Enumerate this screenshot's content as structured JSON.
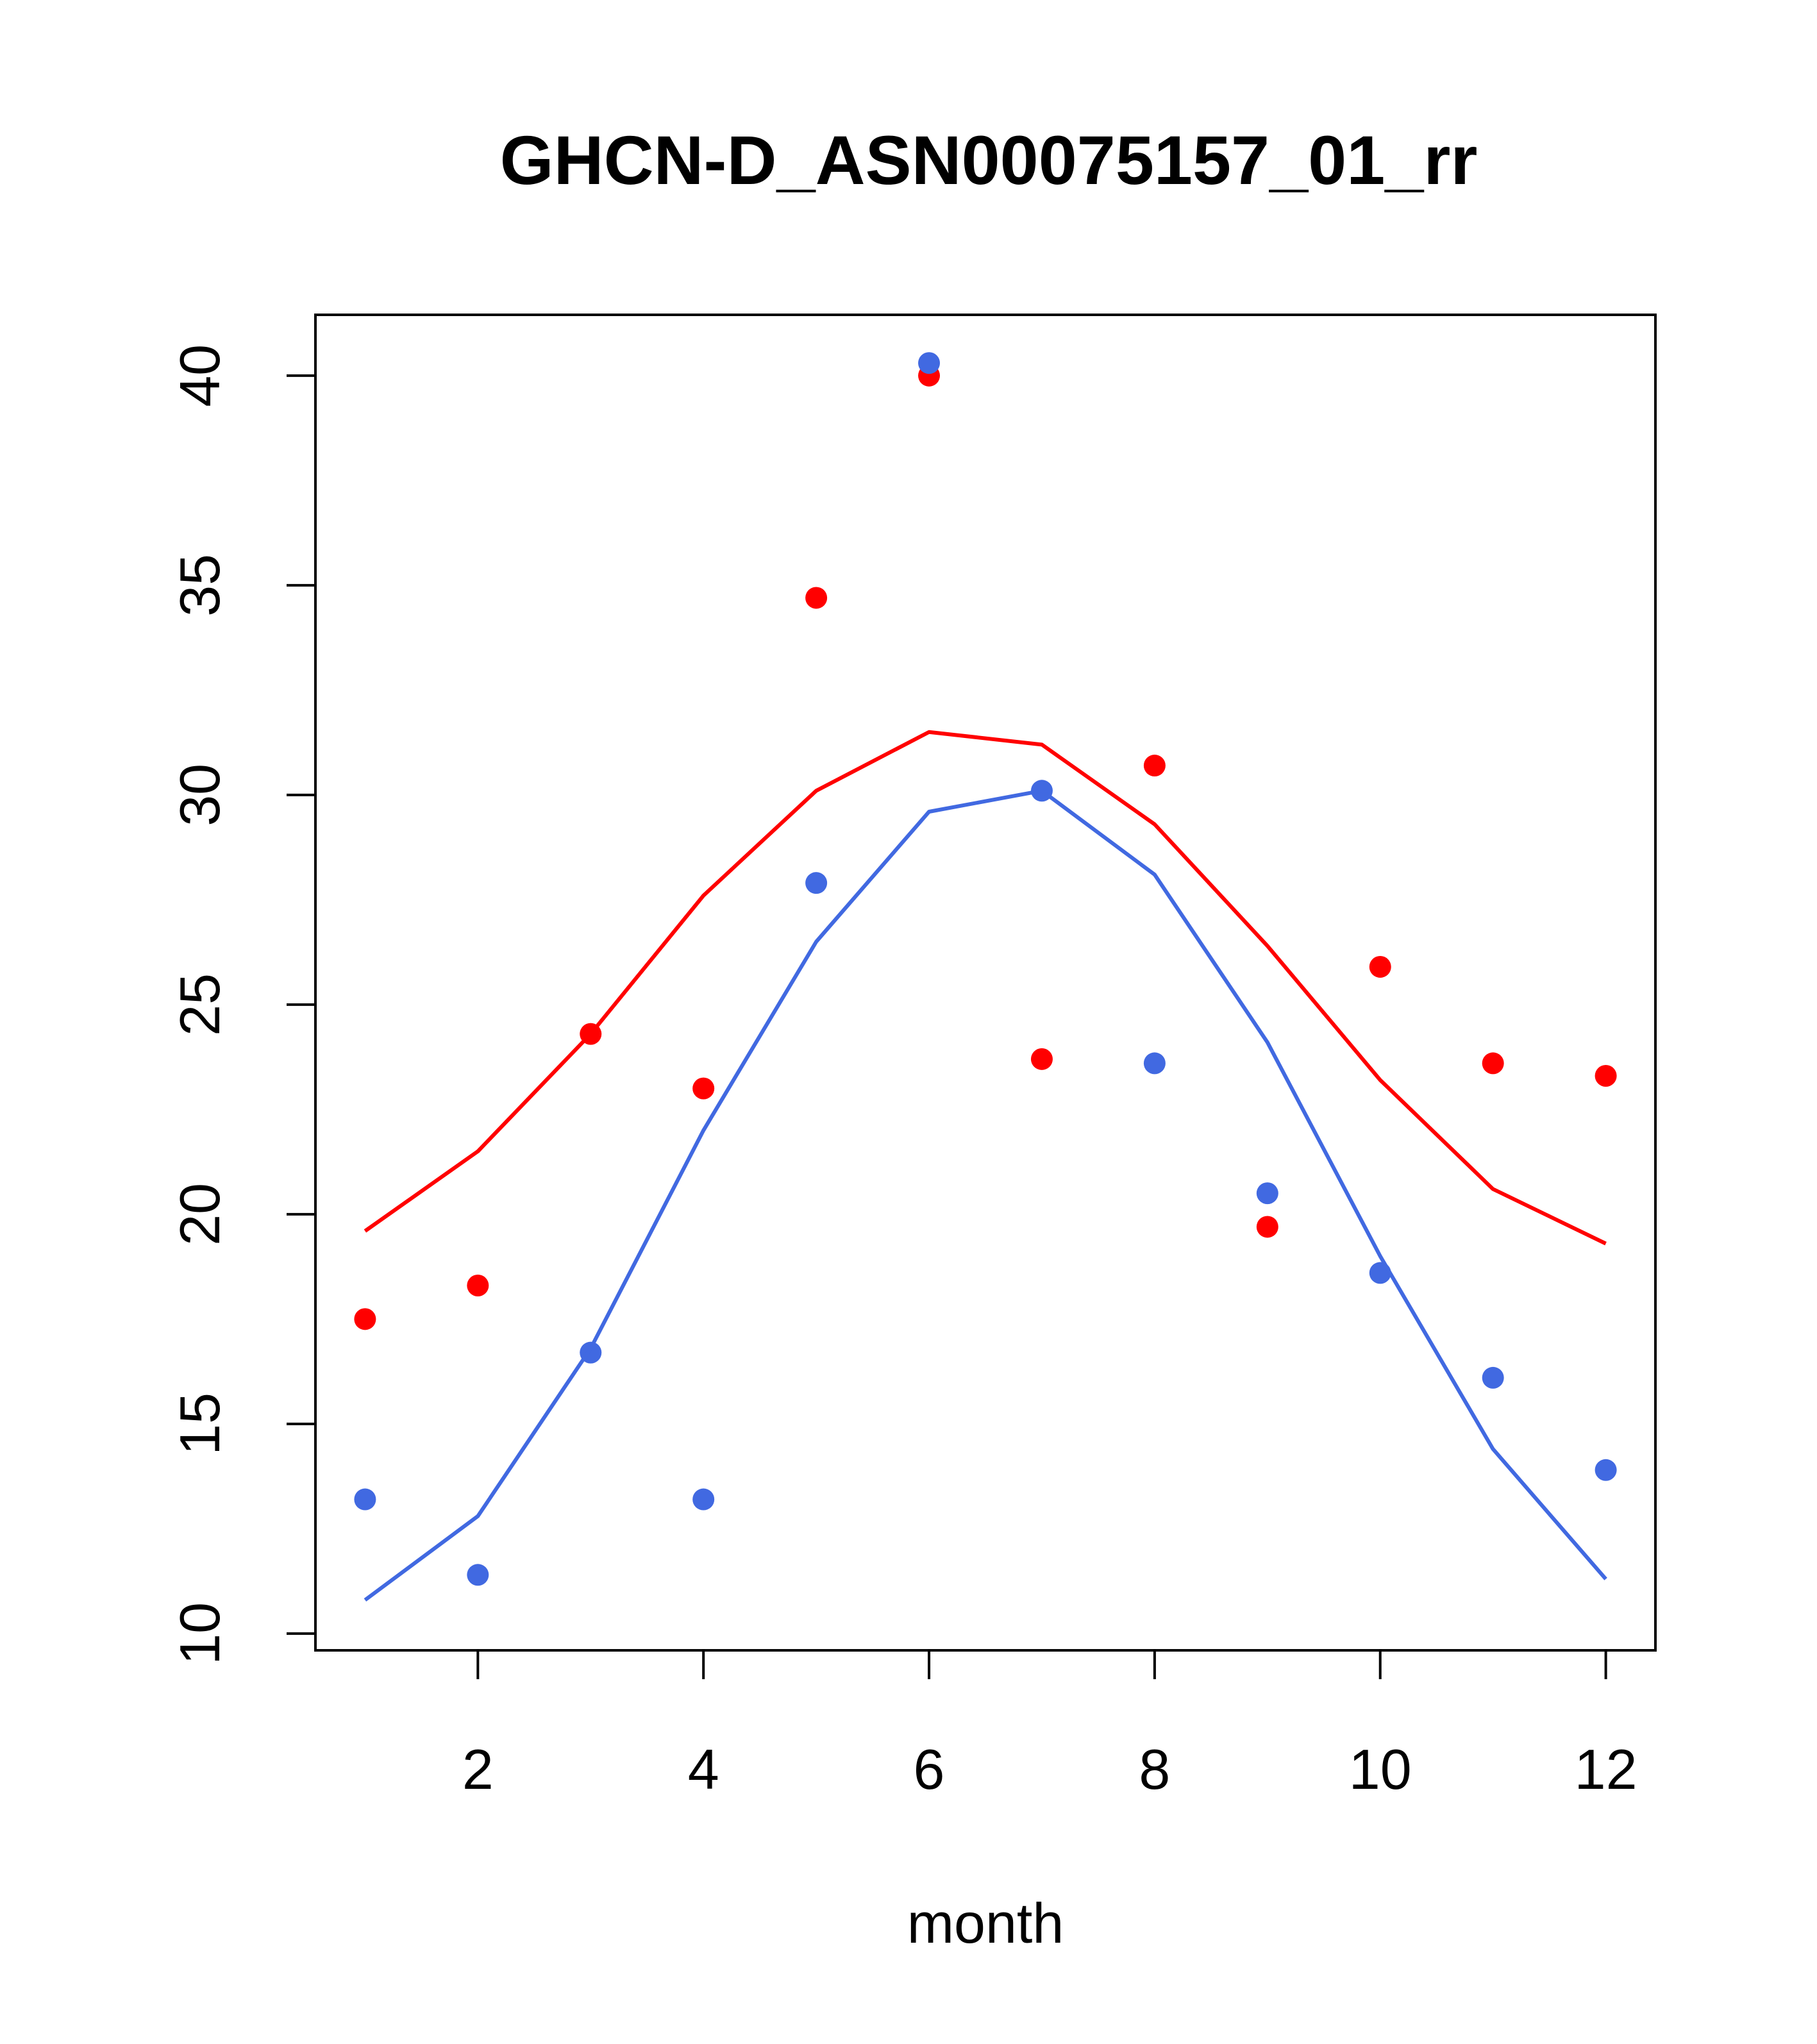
{
  "chart_data": {
    "type": "scatter",
    "title": "GHCN-D_ASN00075157_01_rr",
    "xlabel": "month",
    "ylabel": "",
    "xlim": [
      0.56,
      12.44
    ],
    "ylim": [
      9.6,
      41.45
    ],
    "x_ticks": [
      2,
      4,
      6,
      8,
      10,
      12
    ],
    "x_tick_labels": [
      "2",
      "4",
      "6",
      "8",
      "10",
      "12"
    ],
    "y_ticks": [
      10,
      15,
      20,
      25,
      30,
      35,
      40
    ],
    "y_tick_labels": [
      "10",
      "15",
      "20",
      "25",
      "30",
      "35",
      "40"
    ],
    "grid": false,
    "series": [
      {
        "name": "red points",
        "kind": "points",
        "color": "#ff0000",
        "x": [
          1,
          2,
          3,
          4,
          5,
          6,
          7,
          8,
          9,
          10,
          11,
          12
        ],
        "values": [
          17.5,
          18.3,
          24.3,
          23.0,
          34.7,
          40.0,
          23.7,
          30.7,
          19.7,
          25.9,
          23.6,
          23.3
        ]
      },
      {
        "name": "red line",
        "kind": "line",
        "color": "#ff0000",
        "x": [
          1,
          2,
          3,
          4,
          5,
          6,
          7,
          8,
          9,
          10,
          11,
          12
        ],
        "values": [
          19.6,
          21.5,
          24.3,
          27.6,
          30.1,
          31.5,
          31.2,
          29.3,
          26.4,
          23.2,
          20.6,
          19.3
        ]
      },
      {
        "name": "blue points",
        "kind": "points",
        "color": "#4169e1",
        "x": [
          1,
          2,
          3,
          4,
          5,
          6,
          7,
          8,
          9,
          10,
          11,
          12
        ],
        "values": [
          13.2,
          11.4,
          16.7,
          13.2,
          27.9,
          40.3,
          30.1,
          23.6,
          20.5,
          18.6,
          16.1,
          13.9
        ]
      },
      {
        "name": "blue line",
        "kind": "line",
        "color": "#4169e1",
        "x": [
          1,
          2,
          3,
          4,
          5,
          6,
          7,
          8,
          9,
          10,
          11,
          12
        ],
        "values": [
          10.8,
          12.8,
          16.8,
          22.0,
          26.5,
          29.6,
          30.1,
          28.1,
          24.1,
          19.0,
          14.4,
          11.3
        ]
      }
    ]
  }
}
